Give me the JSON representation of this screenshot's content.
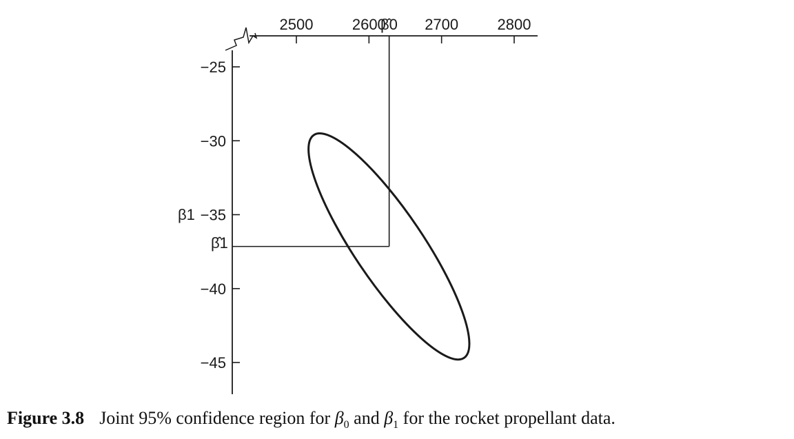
{
  "chart_data": {
    "type": "scatter",
    "title": "",
    "xlabel": "β̂0",
    "ylabel": "β1",
    "x_ticks": [
      2500,
      2600,
      2700,
      2800
    ],
    "y_ticks": [
      -25,
      -30,
      -35,
      -40,
      -45
    ],
    "x_tick_labels": [
      "2500",
      "2600",
      "2700",
      "2800"
    ],
    "y_tick_labels": [
      "−25",
      "−30",
      "−35",
      "−40",
      "−45"
    ],
    "point_estimate": {
      "label_x": "β̂0",
      "label_y": "β̂1",
      "x": 2627.82,
      "y": -37.15
    },
    "confidence_region": {
      "name": "Joint 95% confidence region",
      "shape": "ellipse",
      "extent_x": [
        2505,
        2750
      ],
      "extent_y": [
        -29.6,
        -44.7
      ]
    },
    "grid": false
  },
  "caption": {
    "number": "Figure 3.8",
    "text_before": "Joint 95% confidence region for ",
    "sym1": "β",
    "sub1": "0",
    "text_middle": " and ",
    "sym2": "β",
    "sub2": "1",
    "text_after": " for the rocket propellant data."
  }
}
